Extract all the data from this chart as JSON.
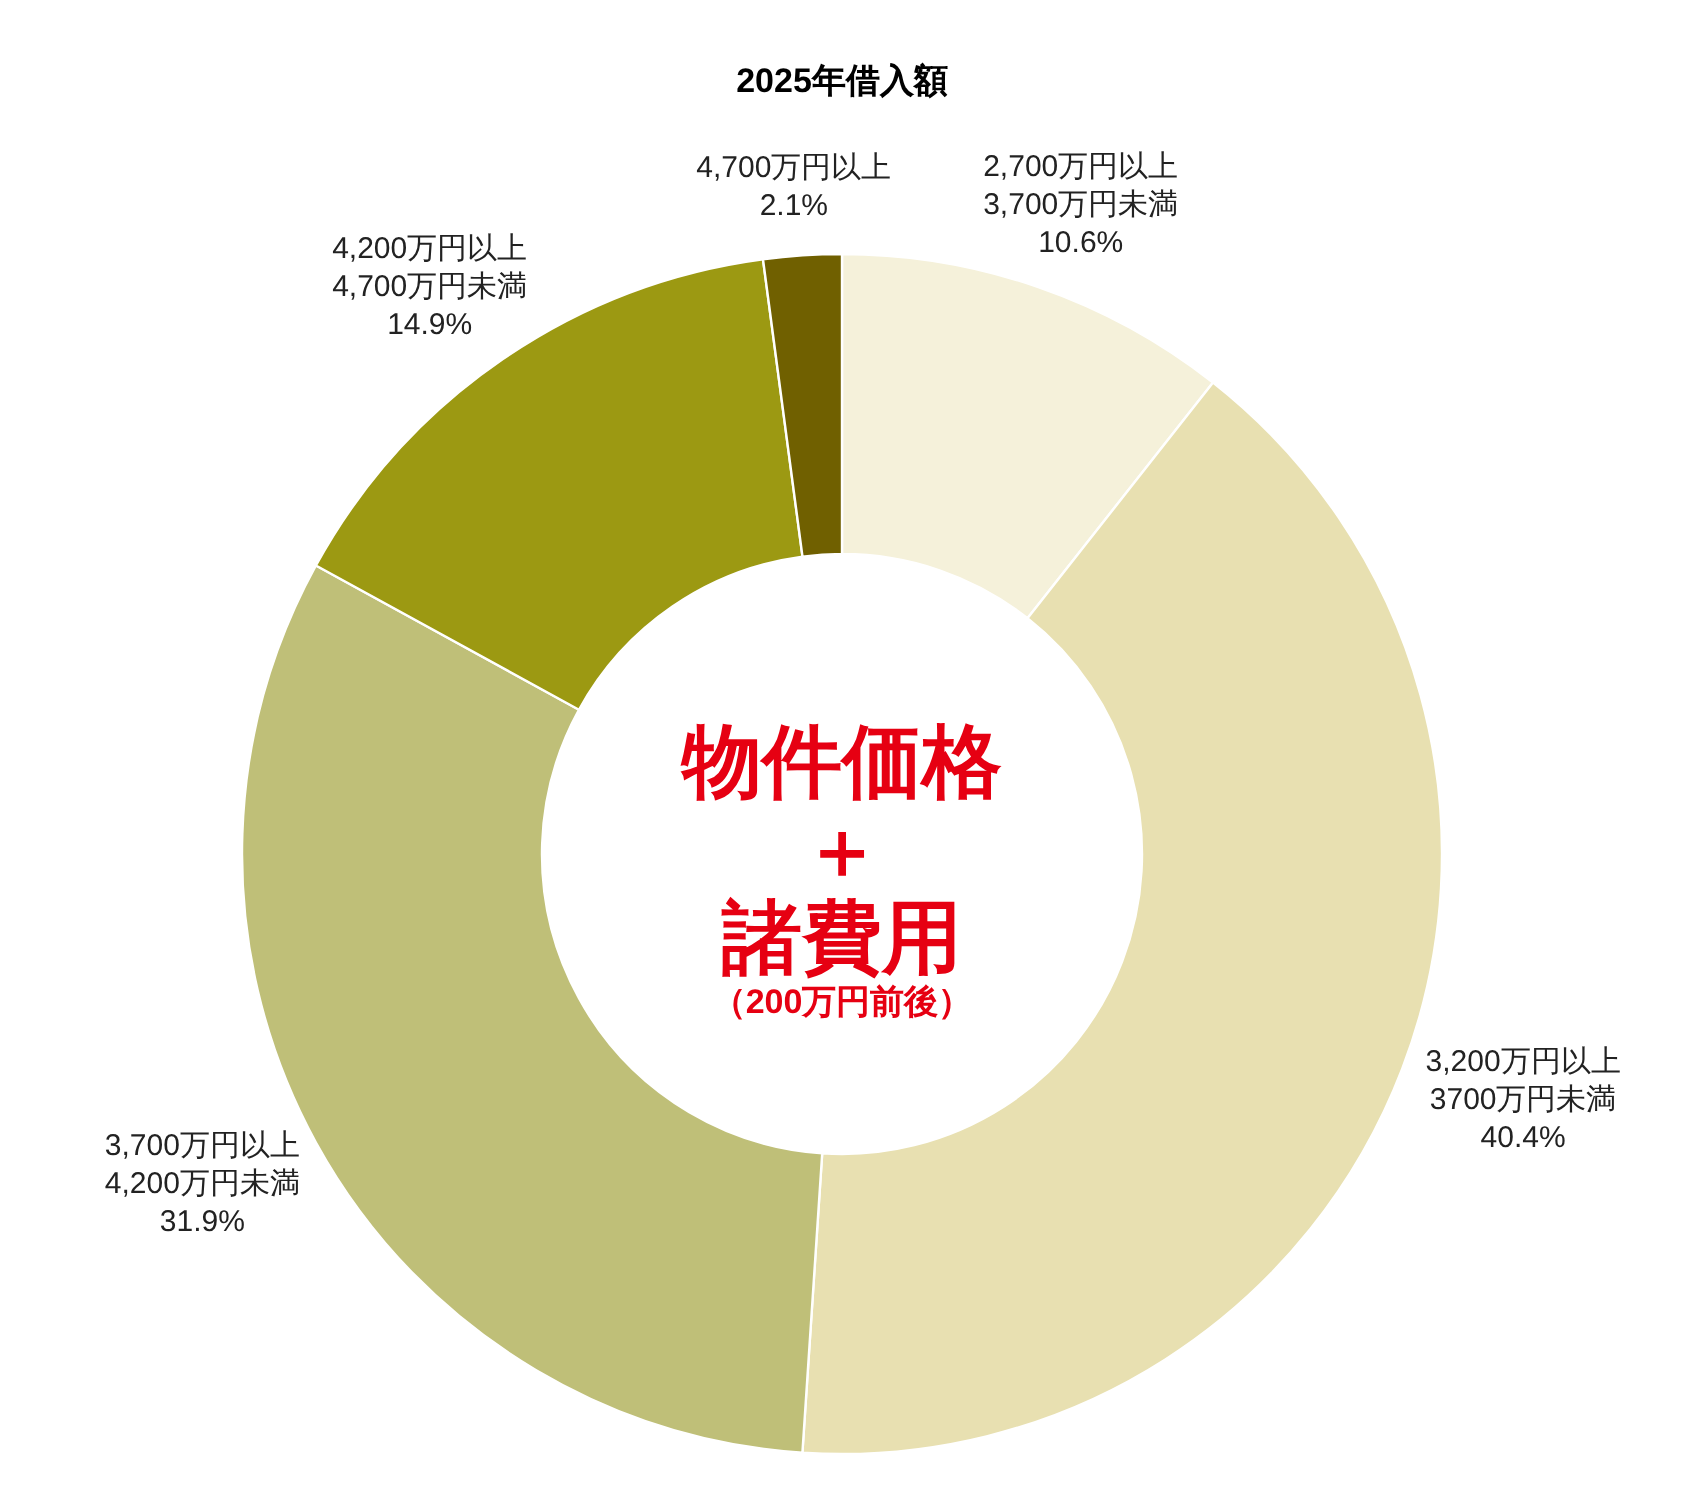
{
  "chart_data": {
    "type": "donut",
    "title": "2025年借入額",
    "categories": [
      "2,700万円以上\n3,700万円未満",
      "3,200万円以上\n3700万円未満",
      "3,700万円以上\n4,200万円未満",
      "4,200万円以上\n4,700万円未満",
      "4,700万円以上"
    ],
    "values": [
      10.6,
      40.4,
      31.9,
      14.9,
      2.1
    ],
    "colors": [
      "#f5f1da",
      "#e8e0b1",
      "#bfbf78",
      "#9c9912",
      "#706000"
    ],
    "value_labels": [
      "10.6%",
      "40.4%",
      "31.9%",
      "14.9%",
      "2.1%"
    ],
    "annotations": [
      "物件価格",
      "＋",
      "諸費用",
      "（200万円前後）"
    ]
  }
}
